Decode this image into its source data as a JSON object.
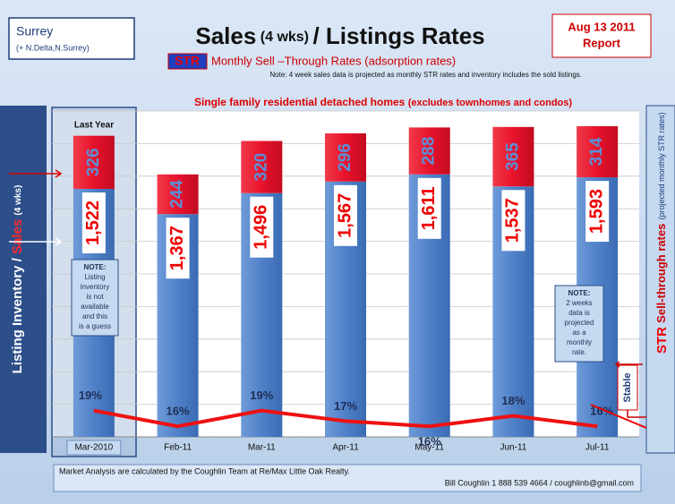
{
  "chart_data": {
    "type": "stacked_bar_line",
    "title_parts": [
      "Sales",
      "(4 wks)",
      "/ Listings Rates"
    ],
    "region": "Surrey",
    "region_note": "(+ N.Delta,N.Surrey)",
    "report_date": "Aug 13 2011",
    "report_word": "Report",
    "str_tag": "STR",
    "subtitle": "Monthly Sell –Through Rates (adsorption rates)",
    "note": "Note: 4 week sales data is projected  as monthly  STR rates and inventory  includes  the  sold listings.",
    "chart_title": "Single family residential detached homes",
    "chart_title_note": "(excludes townhomes and condos)",
    "last_year": "Last Year",
    "y_label_parts": [
      "Listing Inventory / ",
      "Sales",
      "(4 wks)"
    ],
    "y2_label_parts": [
      "STR",
      "Sell-through rates",
      "(projected monthly STR rates)"
    ],
    "note_left": [
      "NOTE:",
      "Listing",
      "inventory",
      "is not",
      "available",
      "and this",
      "is a guess"
    ],
    "note_right": [
      "NOTE:",
      "2 weeks",
      "data is",
      "projected",
      "as a",
      "monthly",
      "rate."
    ],
    "stable": "Stable",
    "footer_left": "Market Analysis are calculated by  the  Coughlin Team at Re/Max  Little Oak Realty.",
    "footer_right": "Bill Coughlin 1 888 539 4664 / coughlinb@gmail.com",
    "categories": [
      "Mar-2010",
      "Feb-11",
      "Mar-11",
      "Apr-11",
      "May-11",
      "Jun-11",
      "Jul-11"
    ],
    "ylim": [
      0,
      2000
    ],
    "y2lim": [
      14,
      76
    ],
    "grid": true,
    "series": [
      {
        "name": "Inventory",
        "color": "#4f81c9",
        "values": [
          1522,
          1367,
          1496,
          1567,
          1611,
          1537,
          1593
        ],
        "value_labels": [
          "1,522",
          "1,367",
          "1,496",
          "1,567",
          "1,611",
          "1,537",
          "1,593"
        ]
      },
      {
        "name": "Sales",
        "color": "#e8122c",
        "values": [
          326,
          244,
          320,
          296,
          288,
          365,
          314
        ]
      },
      {
        "name": "STR",
        "color": "#ee1111",
        "axis": "y2",
        "values": [
          19,
          16,
          19,
          17,
          16,
          18,
          16
        ],
        "value_labels": [
          "19%",
          "16%",
          "19%",
          "17%",
          "16%",
          "18%",
          "16%"
        ]
      }
    ]
  }
}
